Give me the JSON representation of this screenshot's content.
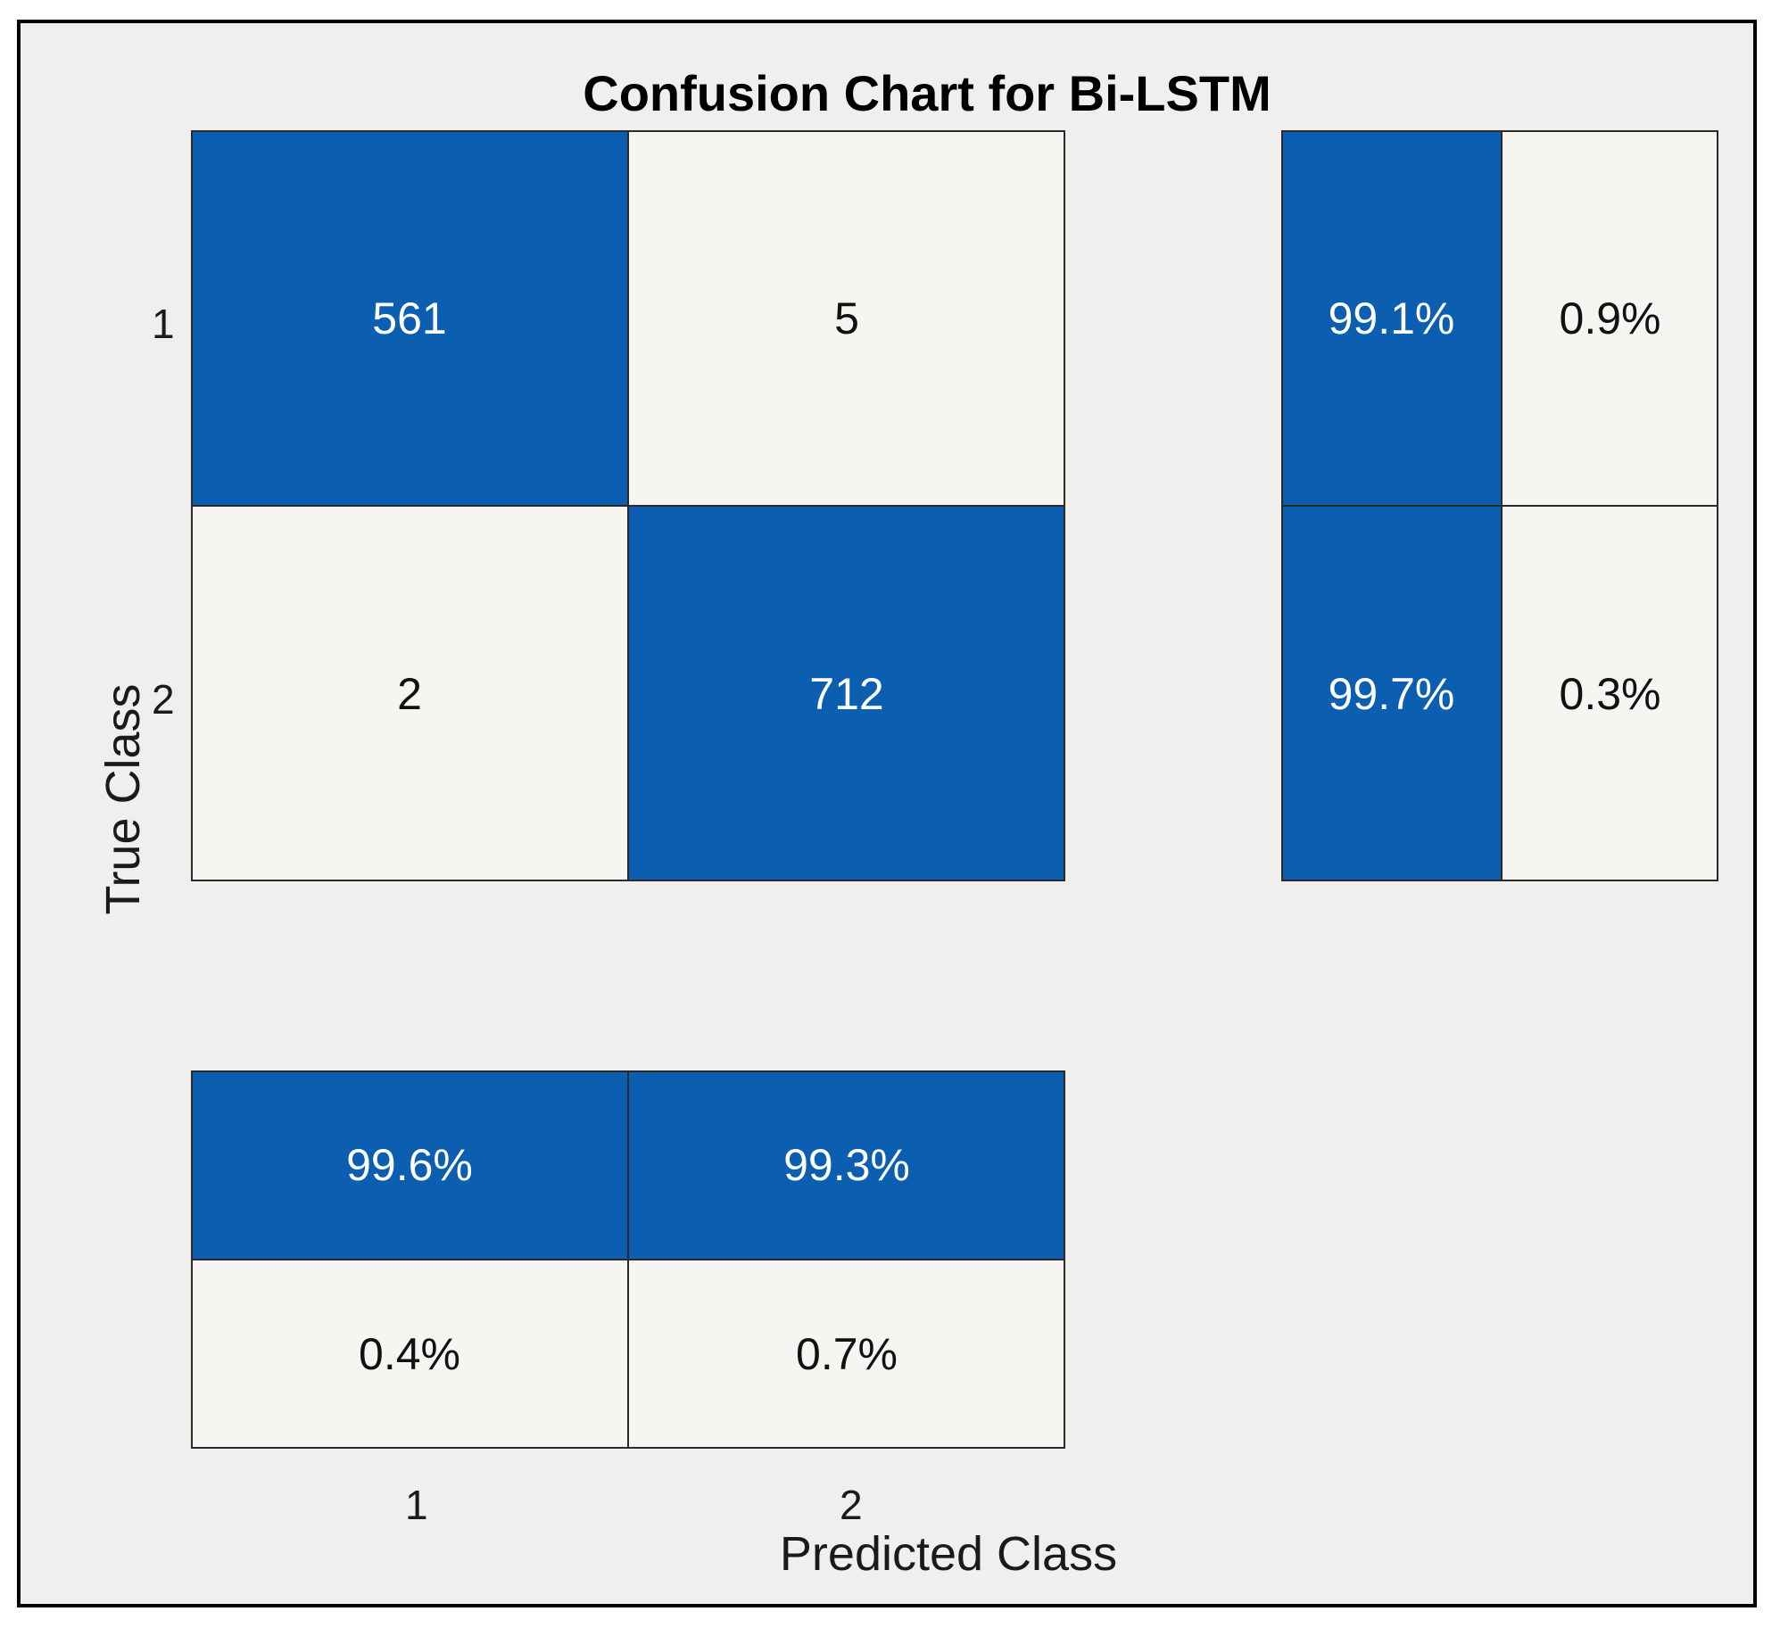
{
  "colors": {
    "dark": "#0c5fb0",
    "light": "#f7f5f2",
    "text_on_dark": "#ffffff",
    "text_on_light": "#111111"
  },
  "chart_data": {
    "type": "heatmap",
    "title": "Confusion Chart for Bi-LSTM",
    "xlabel": "Predicted Class",
    "ylabel": "True Class",
    "classes": [
      "1",
      "2"
    ],
    "matrix": [
      [
        561,
        5
      ],
      [
        2,
        712
      ]
    ],
    "row_summary": [
      [
        "99.1%",
        "0.9%"
      ],
      [
        "99.7%",
        "0.3%"
      ]
    ],
    "column_summary": [
      [
        "99.6%",
        "99.3%"
      ],
      [
        "0.4%",
        "0.7%"
      ]
    ]
  }
}
